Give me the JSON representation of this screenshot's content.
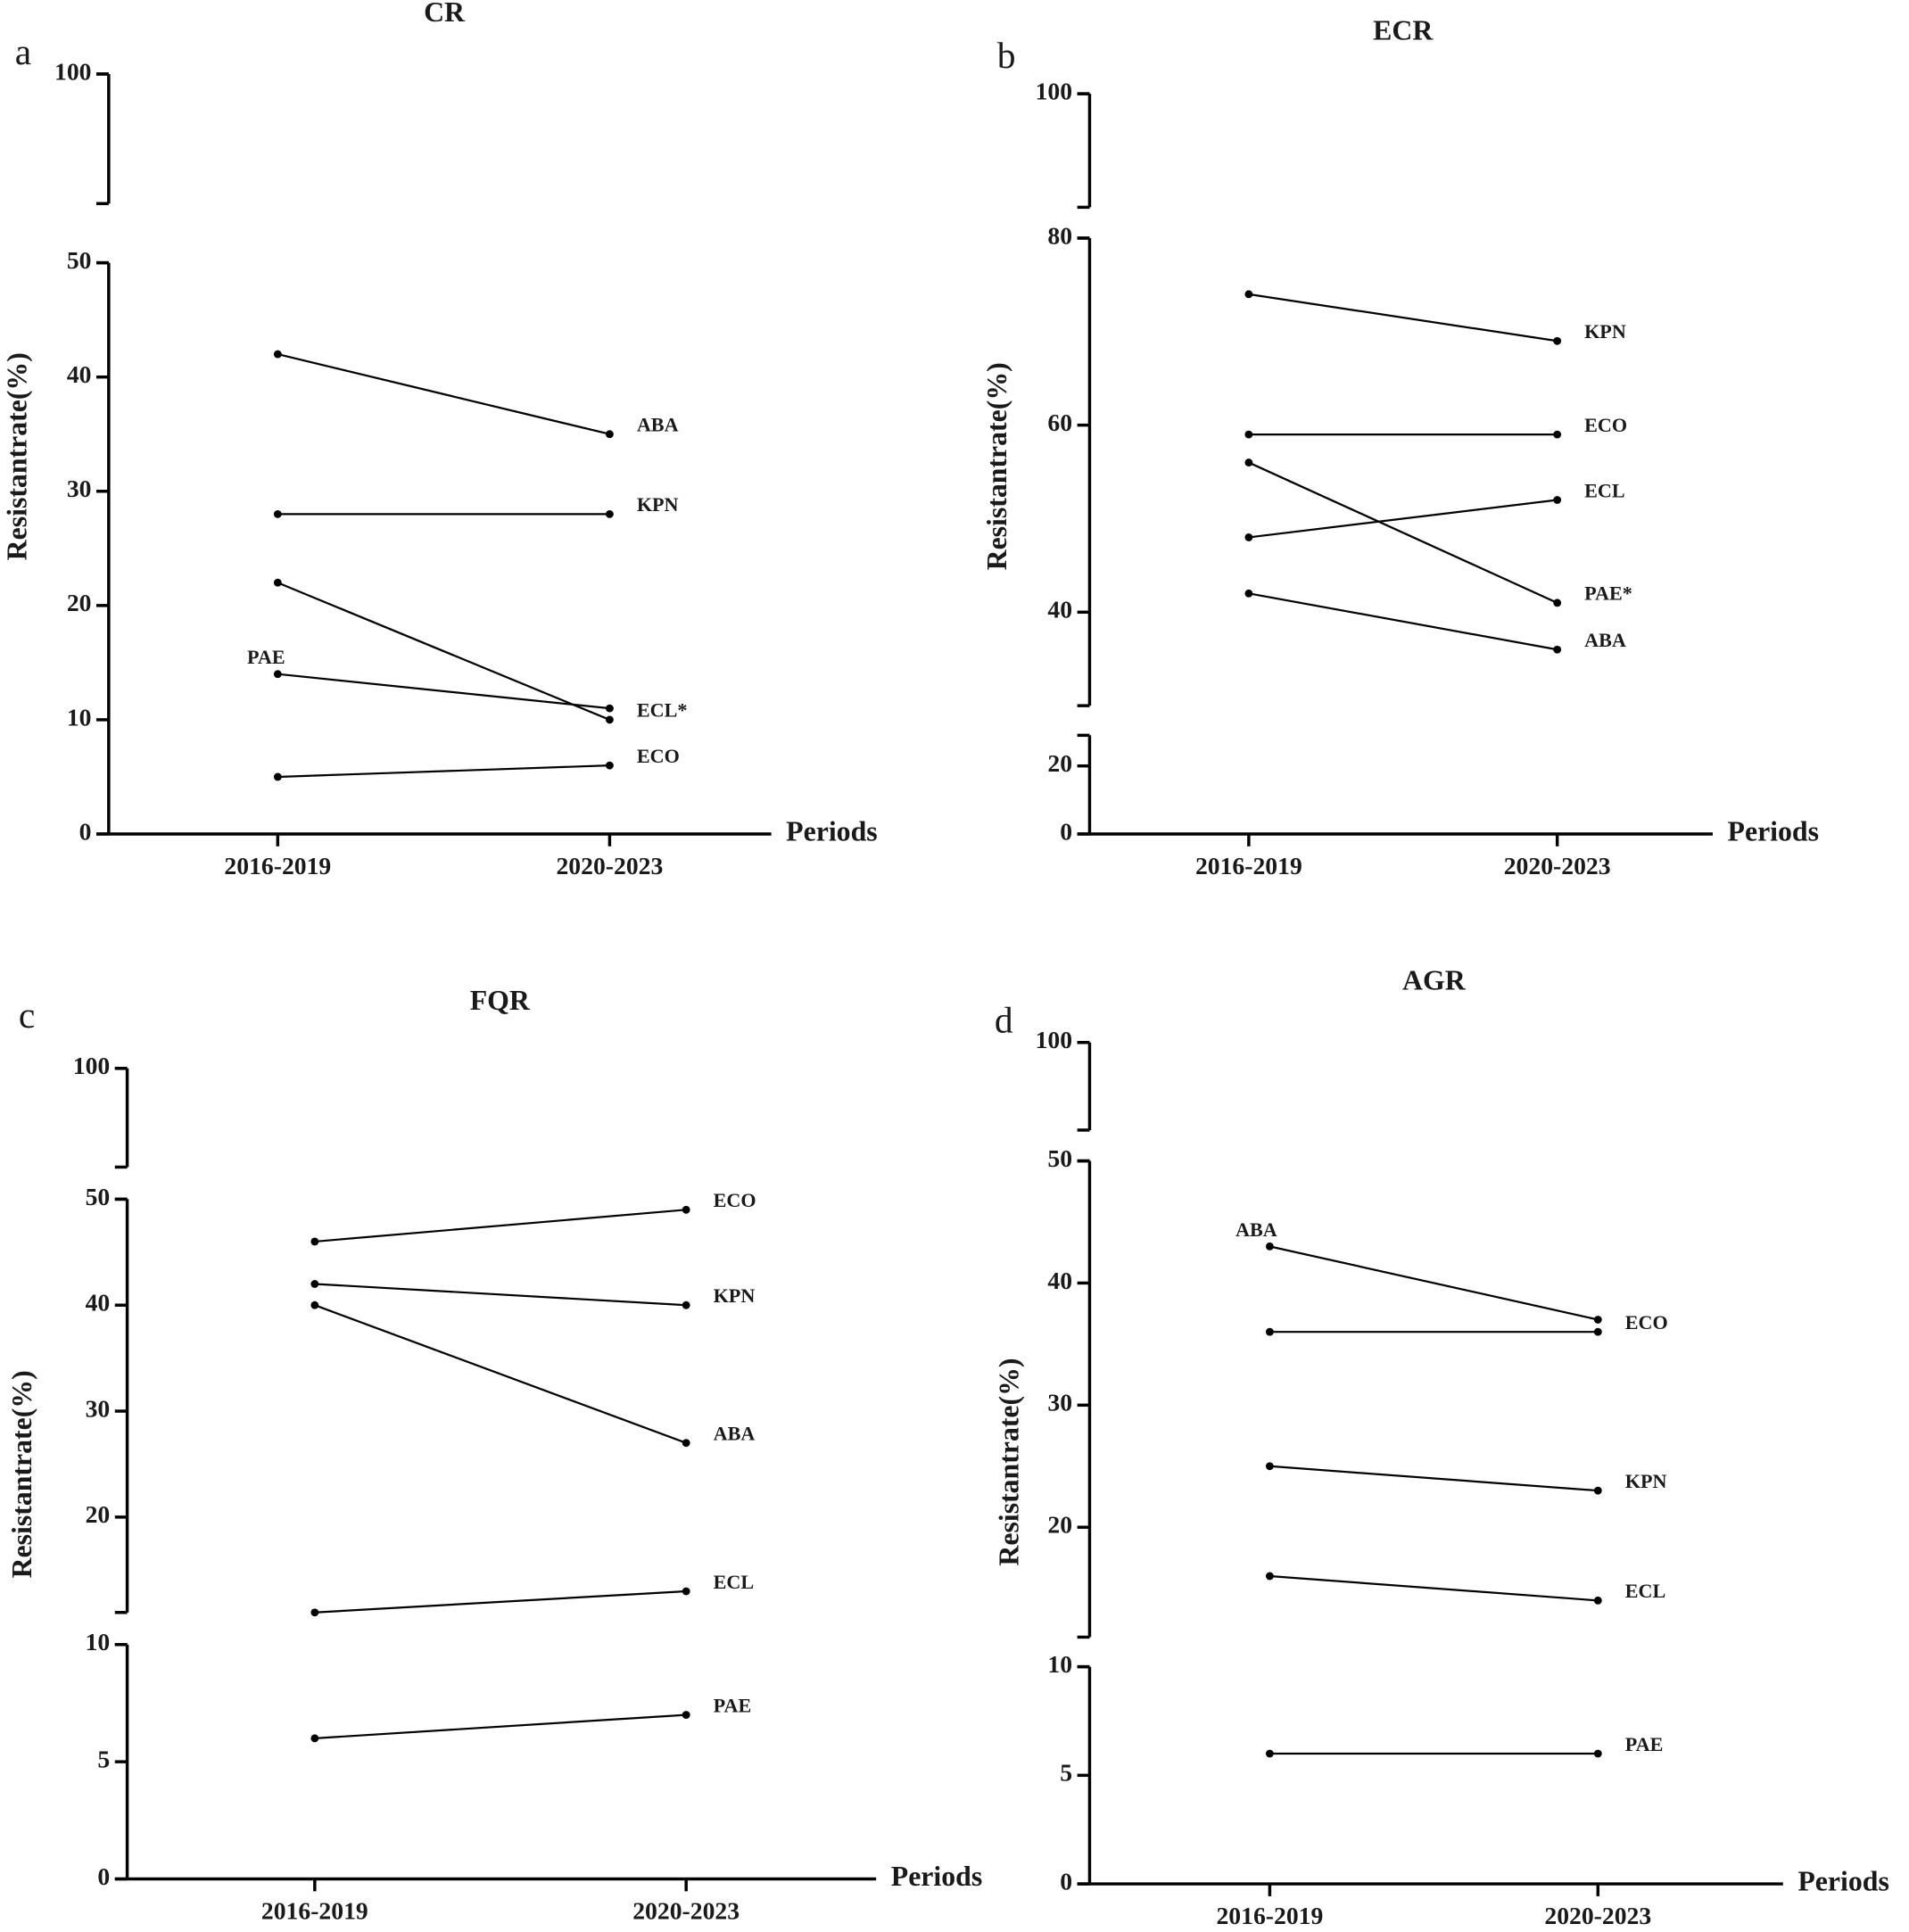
{
  "chart_data": [
    {
      "type": "line",
      "panel": "a",
      "title": "CR",
      "y_label": "Resistantrate(%)",
      "x_label": "Periods",
      "categories": [
        "2016-2019",
        "2020-2023"
      ],
      "y_segments": [
        {
          "ylim": [
            0,
            50
          ],
          "yticks": [
            0,
            10,
            20,
            30,
            40,
            50
          ]
        },
        {
          "ylim": [
            90,
            100
          ],
          "yticks": [
            100
          ]
        }
      ],
      "series": [
        {
          "name": "ABA",
          "color": "#000000",
          "values": [
            42,
            35
          ],
          "label_at": "end"
        },
        {
          "name": "KPN",
          "color": "#000000",
          "values": [
            28,
            28
          ],
          "label_at": "end"
        },
        {
          "name": "ECL*",
          "color": "#000000",
          "values": [
            22,
            10
          ],
          "label_at": "end",
          "label_color": "#2b3990"
        },
        {
          "name": "PAE",
          "color": "#000000",
          "values": [
            14,
            11
          ],
          "label_at": "start"
        },
        {
          "name": "ECO",
          "color": "#000000",
          "values": [
            5,
            6
          ],
          "label_at": "end"
        }
      ]
    },
    {
      "type": "line",
      "panel": "b",
      "title": "ECR",
      "y_label": "Resistantrate(%)",
      "x_label": "Periods",
      "categories": [
        "2016-2019",
        "2020-2023"
      ],
      "y_segments": [
        {
          "ylim": [
            0,
            29
          ],
          "yticks": [
            0,
            20
          ]
        },
        {
          "ylim": [
            30,
            80
          ],
          "yticks": [
            40,
            60,
            80
          ]
        },
        {
          "ylim": [
            88,
            100
          ],
          "yticks": [
            100
          ]
        }
      ],
      "series": [
        {
          "name": "KPN",
          "color": "#000000",
          "values": [
            74,
            69
          ],
          "label_at": "end"
        },
        {
          "name": "ECO",
          "color": "#000000",
          "values": [
            59,
            59
          ],
          "label_at": "end"
        },
        {
          "name": "PAE*",
          "color": "#000000",
          "values": [
            56,
            41
          ],
          "label_at": "end",
          "label_color": "#2b3990"
        },
        {
          "name": "ECL",
          "color": "#000000",
          "values": [
            48,
            52
          ],
          "label_at": "end"
        },
        {
          "name": "ABA",
          "color": "#000000",
          "values": [
            42,
            36
          ],
          "label_at": "end"
        }
      ]
    },
    {
      "type": "line",
      "panel": "c",
      "title": "FQR",
      "y_label": "Resistantrate(%)",
      "x_label": "Periods",
      "categories": [
        "2016-2019",
        "2020-2023"
      ],
      "y_segments": [
        {
          "ylim": [
            0,
            10
          ],
          "yticks": [
            0,
            5,
            10
          ]
        },
        {
          "ylim": [
            11,
            50
          ],
          "yticks": [
            20,
            30,
            40,
            50
          ]
        },
        {
          "ylim": [
            90,
            100
          ],
          "yticks": [
            100
          ]
        }
      ],
      "series": [
        {
          "name": "ECO",
          "color": "#000000",
          "values": [
            46,
            49
          ],
          "label_at": "end"
        },
        {
          "name": "KPN",
          "color": "#000000",
          "values": [
            42,
            40
          ],
          "label_at": "end"
        },
        {
          "name": "ABA",
          "color": "#000000",
          "values": [
            40,
            27
          ],
          "label_at": "end"
        },
        {
          "name": "ECL",
          "color": "#000000",
          "values": [
            11,
            13
          ],
          "label_at": "end"
        },
        {
          "name": "PAE",
          "color": "#000000",
          "values": [
            6,
            7
          ],
          "label_at": "end"
        }
      ]
    },
    {
      "type": "line",
      "panel": "d",
      "title": "AGR",
      "y_label": "Resistantrate(%)",
      "x_label": "Periods",
      "categories": [
        "2016-2019",
        "2020-2023"
      ],
      "y_segments": [
        {
          "ylim": [
            0,
            10
          ],
          "yticks": [
            0,
            5,
            10
          ]
        },
        {
          "ylim": [
            11,
            50
          ],
          "yticks": [
            20,
            30,
            40,
            50
          ]
        },
        {
          "ylim": [
            90,
            100
          ],
          "yticks": [
            100
          ]
        }
      ],
      "series": [
        {
          "name": "ABA",
          "color": "#000000",
          "values": [
            43,
            37
          ],
          "label_at": "start"
        },
        {
          "name": "ECO",
          "color": "#000000",
          "values": [
            36,
            36
          ],
          "label_at": "end"
        },
        {
          "name": "KPN",
          "color": "#000000",
          "values": [
            25,
            23
          ],
          "label_at": "end"
        },
        {
          "name": "ECL",
          "color": "#000000",
          "values": [
            16,
            14
          ],
          "label_at": "end"
        },
        {
          "name": "PAE",
          "color": "#000000",
          "values": [
            6,
            6
          ],
          "label_at": "end"
        }
      ]
    }
  ]
}
